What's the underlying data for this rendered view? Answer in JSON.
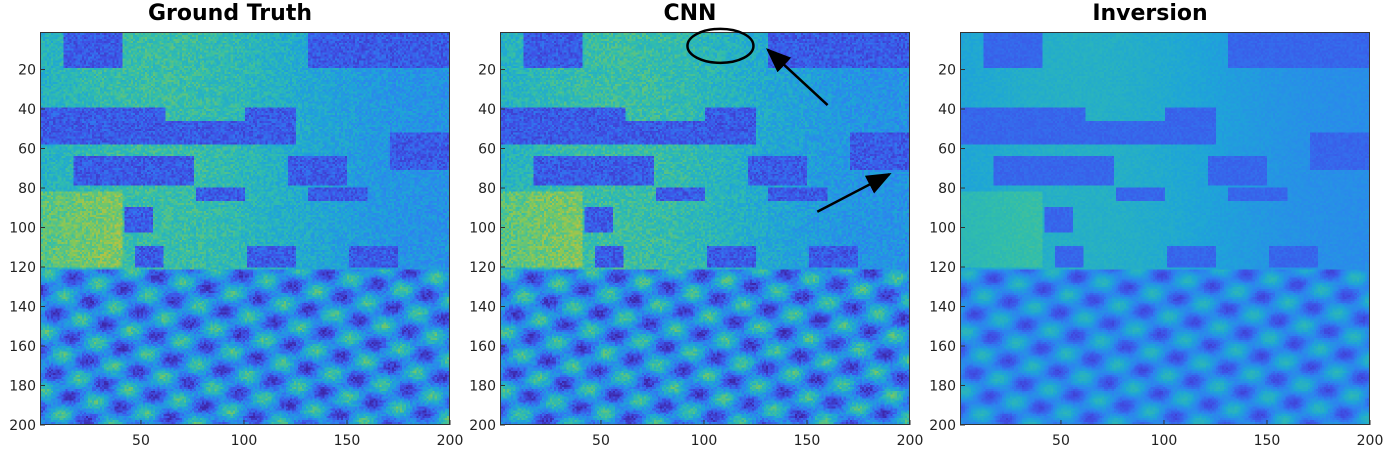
{
  "chart_data": [
    {
      "type": "heatmap",
      "title": "Ground Truth",
      "xlim": [
        1,
        200
      ],
      "ylim": [
        1,
        200
      ],
      "y_reversed": true,
      "xticks": [
        50,
        100,
        150,
        200
      ],
      "yticks": [
        20,
        40,
        60,
        80,
        100,
        120,
        140,
        160,
        180,
        200
      ],
      "colormap": "parula"
    },
    {
      "type": "heatmap",
      "title": "CNN",
      "xlim": [
        1,
        200
      ],
      "ylim": [
        1,
        200
      ],
      "y_reversed": true,
      "xticks": [
        50,
        100,
        150,
        200
      ],
      "yticks": [
        20,
        40,
        60,
        80,
        100,
        120,
        140,
        160,
        180,
        200
      ],
      "colormap": "parula",
      "annotations": [
        {
          "kind": "ellipse",
          "x": 108,
          "y": 8
        },
        {
          "kind": "arrow",
          "from": [
            160,
            38
          ],
          "to": [
            131,
            10
          ]
        },
        {
          "kind": "arrow",
          "from": [
            155,
            92
          ],
          "to": [
            190,
            73
          ]
        }
      ]
    },
    {
      "type": "heatmap",
      "title": "Inversion",
      "xlim": [
        1,
        200
      ],
      "ylim": [
        1,
        200
      ],
      "y_reversed": true,
      "xticks": [
        50,
        100,
        150,
        200
      ],
      "yticks": [
        20,
        40,
        60,
        80,
        100,
        120,
        140,
        160,
        180,
        200
      ],
      "colormap": "parula"
    }
  ],
  "colors": {
    "low": "#3d4fd8",
    "mid": "#2fa6c9",
    "high": "#a8d43f",
    "annotation": "#000000"
  }
}
